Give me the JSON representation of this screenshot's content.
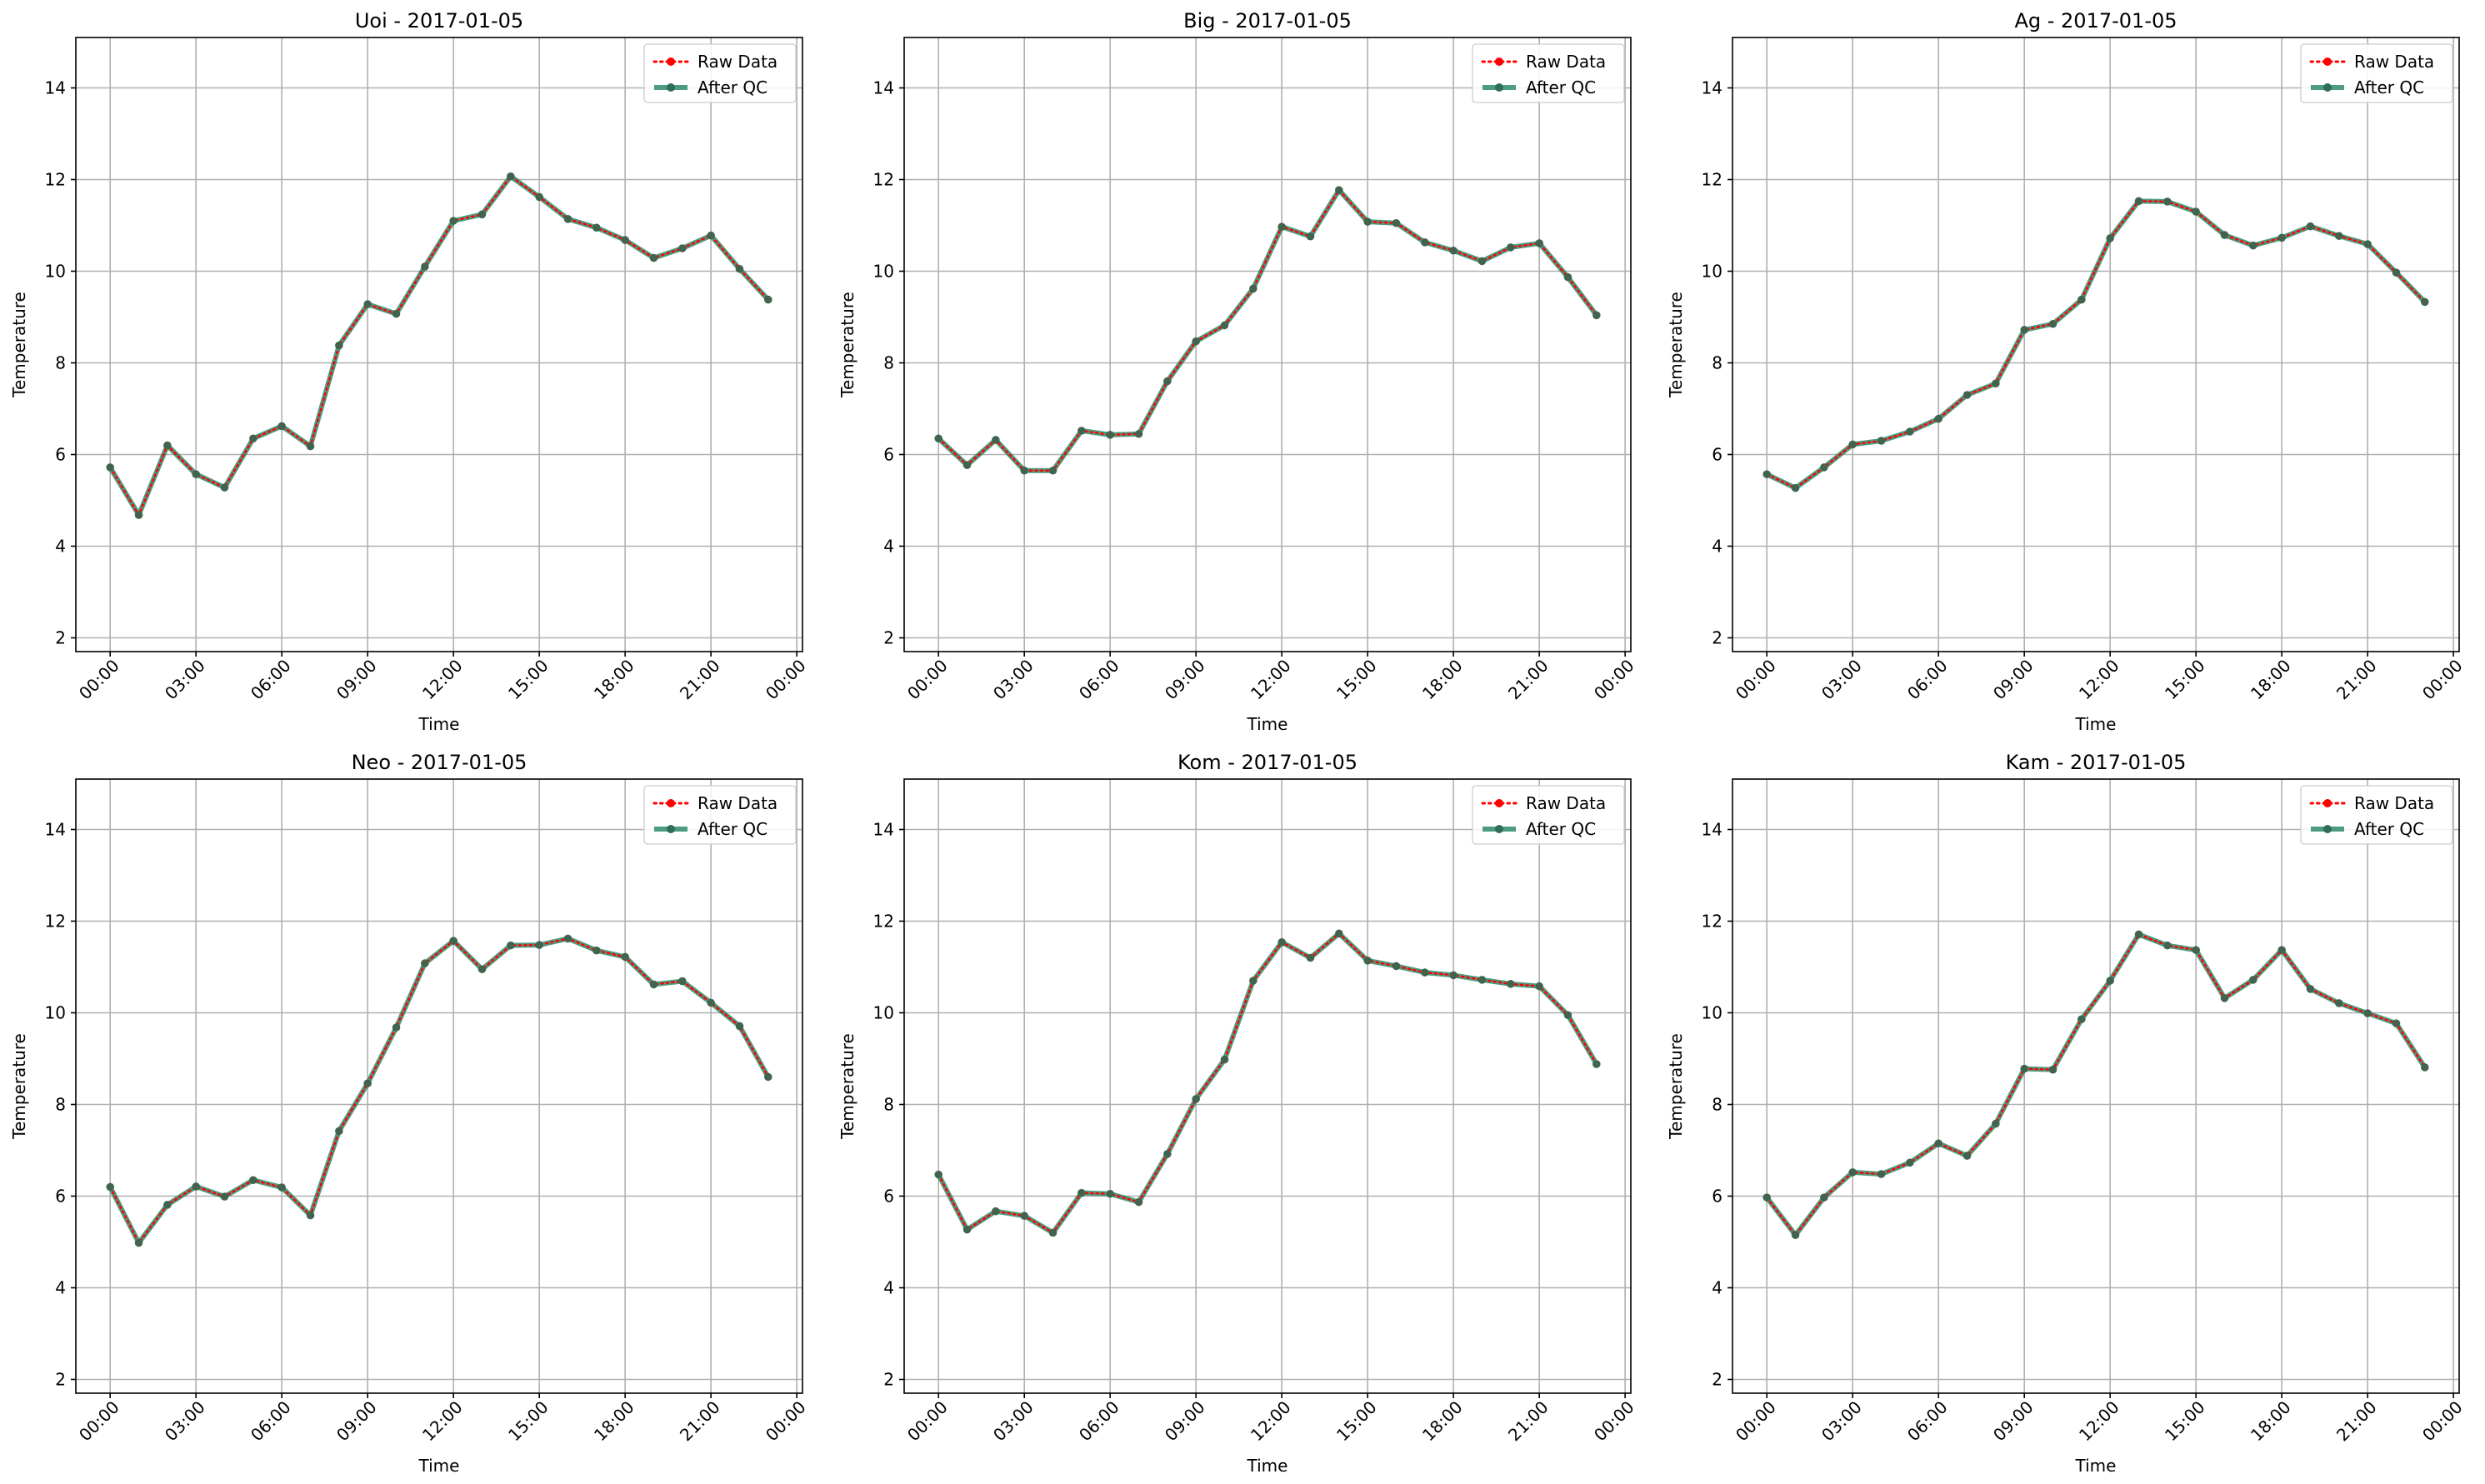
{
  "chart_data": [
    {
      "type": "line",
      "title": "Uoi - 2017-01-05",
      "xlabel": "Time",
      "ylabel": "Temperature",
      "x_ticks": [
        "00:00",
        "03:00",
        "06:00",
        "09:00",
        "12:00",
        "15:00",
        "18:00",
        "21:00",
        "00:00"
      ],
      "y_ticks": [
        2,
        4,
        6,
        8,
        10,
        12,
        14
      ],
      "ylim": [
        1.7,
        15.1
      ],
      "xlim_hours": [
        -1.2,
        24.2
      ],
      "grid": true,
      "legend_position": "top-right",
      "x_hours": [
        0,
        1,
        2,
        3,
        4,
        5,
        6,
        7,
        8,
        9,
        10,
        11,
        12,
        13,
        14,
        15,
        16,
        17,
        18,
        19,
        20,
        21,
        22,
        23
      ],
      "series": [
        {
          "name": "Raw Data",
          "color": "#ff0000",
          "style": "dotted",
          "values": [
            5.72,
            4.68,
            6.2,
            5.57,
            5.28,
            6.35,
            6.62,
            6.18,
            8.38,
            9.28,
            9.07,
            10.1,
            11.1,
            11.24,
            12.07,
            11.62,
            11.14,
            10.95,
            10.68,
            10.29,
            10.5,
            10.78,
            10.05,
            9.38
          ]
        },
        {
          "name": "After QC",
          "color": "#2e8b6b",
          "style": "solid",
          "values": [
            5.72,
            4.68,
            6.2,
            5.57,
            5.28,
            6.35,
            6.62,
            6.18,
            8.38,
            9.28,
            9.07,
            10.1,
            11.1,
            11.24,
            12.07,
            11.62,
            11.14,
            10.95,
            10.68,
            10.29,
            10.5,
            10.78,
            10.05,
            9.38
          ]
        }
      ]
    },
    {
      "type": "line",
      "title": "Big - 2017-01-05",
      "xlabel": "Time",
      "ylabel": "Temperature",
      "x_ticks": [
        "00:00",
        "03:00",
        "06:00",
        "09:00",
        "12:00",
        "15:00",
        "18:00",
        "21:00",
        "00:00"
      ],
      "y_ticks": [
        2,
        4,
        6,
        8,
        10,
        12,
        14
      ],
      "ylim": [
        1.7,
        15.1
      ],
      "xlim_hours": [
        -1.2,
        24.2
      ],
      "grid": true,
      "legend_position": "top-right",
      "x_hours": [
        0,
        1,
        2,
        3,
        4,
        5,
        6,
        7,
        8,
        9,
        10,
        11,
        12,
        13,
        14,
        15,
        16,
        17,
        18,
        19,
        20,
        21,
        22,
        23
      ],
      "series": [
        {
          "name": "Raw Data",
          "color": "#ff0000",
          "style": "dotted",
          "values": [
            6.35,
            5.77,
            6.32,
            5.65,
            5.65,
            6.52,
            6.43,
            6.45,
            7.6,
            8.47,
            8.82,
            9.62,
            10.97,
            10.76,
            11.77,
            11.08,
            11.05,
            10.63,
            10.45,
            10.22,
            10.52,
            10.61,
            9.87,
            9.04
          ]
        },
        {
          "name": "After QC",
          "color": "#2e8b6b",
          "style": "solid",
          "values": [
            6.35,
            5.77,
            6.32,
            5.65,
            5.65,
            6.52,
            6.43,
            6.45,
            7.6,
            8.47,
            8.82,
            9.62,
            10.97,
            10.76,
            11.77,
            11.08,
            11.05,
            10.63,
            10.45,
            10.22,
            10.52,
            10.61,
            9.87,
            9.04
          ]
        }
      ]
    },
    {
      "type": "line",
      "title": "Ag - 2017-01-05",
      "xlabel": "Time",
      "ylabel": "Temperature",
      "x_ticks": [
        "00:00",
        "03:00",
        "06:00",
        "09:00",
        "12:00",
        "15:00",
        "18:00",
        "21:00",
        "00:00"
      ],
      "y_ticks": [
        2,
        4,
        6,
        8,
        10,
        12,
        14
      ],
      "ylim": [
        1.7,
        15.1
      ],
      "xlim_hours": [
        -1.2,
        24.2
      ],
      "grid": true,
      "legend_position": "top-right",
      "x_hours": [
        0,
        1,
        2,
        3,
        4,
        5,
        6,
        7,
        8,
        9,
        10,
        11,
        12,
        13,
        14,
        15,
        16,
        17,
        18,
        19,
        20,
        21,
        22,
        23
      ],
      "series": [
        {
          "name": "Raw Data",
          "color": "#ff0000",
          "style": "dotted",
          "values": [
            5.57,
            5.27,
            5.72,
            6.22,
            6.3,
            6.5,
            6.78,
            7.3,
            7.55,
            8.72,
            8.85,
            9.38,
            10.72,
            11.53,
            11.52,
            11.3,
            10.79,
            10.56,
            10.73,
            10.98,
            10.77,
            10.59,
            9.97,
            9.33
          ]
        },
        {
          "name": "After QC",
          "color": "#2e8b6b",
          "style": "solid",
          "values": [
            5.57,
            5.27,
            5.72,
            6.22,
            6.3,
            6.5,
            6.78,
            7.3,
            7.55,
            8.72,
            8.85,
            9.38,
            10.72,
            11.53,
            11.52,
            11.3,
            10.79,
            10.56,
            10.73,
            10.98,
            10.77,
            10.59,
            9.97,
            9.33
          ]
        }
      ]
    },
    {
      "type": "line",
      "title": "Neo - 2017-01-05",
      "xlabel": "Time",
      "ylabel": "Temperature",
      "x_ticks": [
        "00:00",
        "03:00",
        "06:00",
        "09:00",
        "12:00",
        "15:00",
        "18:00",
        "21:00",
        "00:00"
      ],
      "y_ticks": [
        2,
        4,
        6,
        8,
        10,
        12,
        14
      ],
      "ylim": [
        1.7,
        15.1
      ],
      "xlim_hours": [
        -1.2,
        24.2
      ],
      "grid": true,
      "legend_position": "top-right",
      "x_hours": [
        0,
        1,
        2,
        3,
        4,
        5,
        6,
        7,
        8,
        9,
        10,
        11,
        12,
        13,
        14,
        15,
        16,
        17,
        18,
        19,
        20,
        21,
        22,
        23
      ],
      "series": [
        {
          "name": "Raw Data",
          "color": "#ff0000",
          "style": "dotted",
          "values": [
            6.2,
            4.98,
            5.81,
            6.21,
            5.99,
            6.35,
            6.19,
            5.58,
            7.42,
            8.46,
            9.68,
            11.08,
            11.57,
            10.95,
            11.47,
            11.48,
            11.62,
            11.36,
            11.22,
            10.62,
            10.69,
            10.22,
            9.71,
            8.6
          ]
        },
        {
          "name": "After QC",
          "color": "#2e8b6b",
          "style": "solid",
          "values": [
            6.2,
            4.98,
            5.81,
            6.21,
            5.99,
            6.35,
            6.19,
            5.58,
            7.42,
            8.46,
            9.68,
            11.08,
            11.57,
            10.95,
            11.47,
            11.48,
            11.62,
            11.36,
            11.22,
            10.62,
            10.69,
            10.22,
            9.71,
            8.6
          ]
        }
      ]
    },
    {
      "type": "line",
      "title": "Kom - 2017-01-05",
      "xlabel": "Time",
      "ylabel": "Temperature",
      "x_ticks": [
        "00:00",
        "03:00",
        "06:00",
        "09:00",
        "12:00",
        "15:00",
        "18:00",
        "21:00",
        "00:00"
      ],
      "y_ticks": [
        2,
        4,
        6,
        8,
        10,
        12,
        14
      ],
      "ylim": [
        1.7,
        15.1
      ],
      "xlim_hours": [
        -1.2,
        24.2
      ],
      "grid": true,
      "legend_position": "top-right",
      "x_hours": [
        0,
        1,
        2,
        3,
        4,
        5,
        6,
        7,
        8,
        9,
        10,
        11,
        12,
        13,
        14,
        15,
        16,
        17,
        18,
        19,
        20,
        21,
        22,
        23
      ],
      "series": [
        {
          "name": "Raw Data",
          "color": "#ff0000",
          "style": "dotted",
          "values": [
            6.47,
            5.27,
            5.67,
            5.57,
            5.2,
            6.07,
            6.05,
            5.87,
            6.92,
            8.12,
            8.98,
            10.7,
            11.54,
            11.2,
            11.73,
            11.14,
            11.02,
            10.88,
            10.82,
            10.72,
            10.63,
            10.58,
            9.95,
            8.88
          ]
        },
        {
          "name": "After QC",
          "color": "#2e8b6b",
          "style": "solid",
          "values": [
            6.47,
            5.27,
            5.67,
            5.57,
            5.2,
            6.07,
            6.05,
            5.87,
            6.92,
            8.12,
            8.98,
            10.7,
            11.54,
            11.2,
            11.73,
            11.14,
            11.02,
            10.88,
            10.82,
            10.72,
            10.63,
            10.58,
            9.95,
            8.88
          ]
        }
      ]
    },
    {
      "type": "line",
      "title": "Kam - 2017-01-05",
      "xlabel": "Time",
      "ylabel": "Temperature",
      "x_ticks": [
        "00:00",
        "03:00",
        "06:00",
        "09:00",
        "12:00",
        "15:00",
        "18:00",
        "21:00",
        "00:00"
      ],
      "y_ticks": [
        2,
        4,
        6,
        8,
        10,
        12,
        14
      ],
      "ylim": [
        1.7,
        15.1
      ],
      "xlim_hours": [
        -1.2,
        24.2
      ],
      "grid": true,
      "legend_position": "top-right",
      "x_hours": [
        0,
        1,
        2,
        3,
        4,
        5,
        6,
        7,
        8,
        9,
        10,
        11,
        12,
        13,
        14,
        15,
        16,
        17,
        18,
        19,
        20,
        21,
        22,
        23
      ],
      "series": [
        {
          "name": "Raw Data",
          "color": "#ff0000",
          "style": "dotted",
          "values": [
            5.97,
            5.15,
            5.97,
            6.52,
            6.48,
            6.73,
            7.15,
            6.88,
            7.58,
            8.78,
            8.76,
            9.86,
            10.7,
            11.71,
            11.47,
            11.37,
            10.32,
            10.72,
            11.37,
            10.52,
            10.21,
            9.99,
            9.77,
            8.81
          ]
        },
        {
          "name": "After QC",
          "color": "#2e8b6b",
          "style": "solid",
          "values": [
            5.97,
            5.15,
            5.97,
            6.52,
            6.48,
            6.73,
            7.15,
            6.88,
            7.58,
            8.78,
            8.76,
            9.86,
            10.7,
            11.71,
            11.47,
            11.37,
            10.32,
            10.72,
            11.37,
            10.52,
            10.21,
            9.99,
            9.77,
            8.81
          ]
        }
      ]
    }
  ]
}
